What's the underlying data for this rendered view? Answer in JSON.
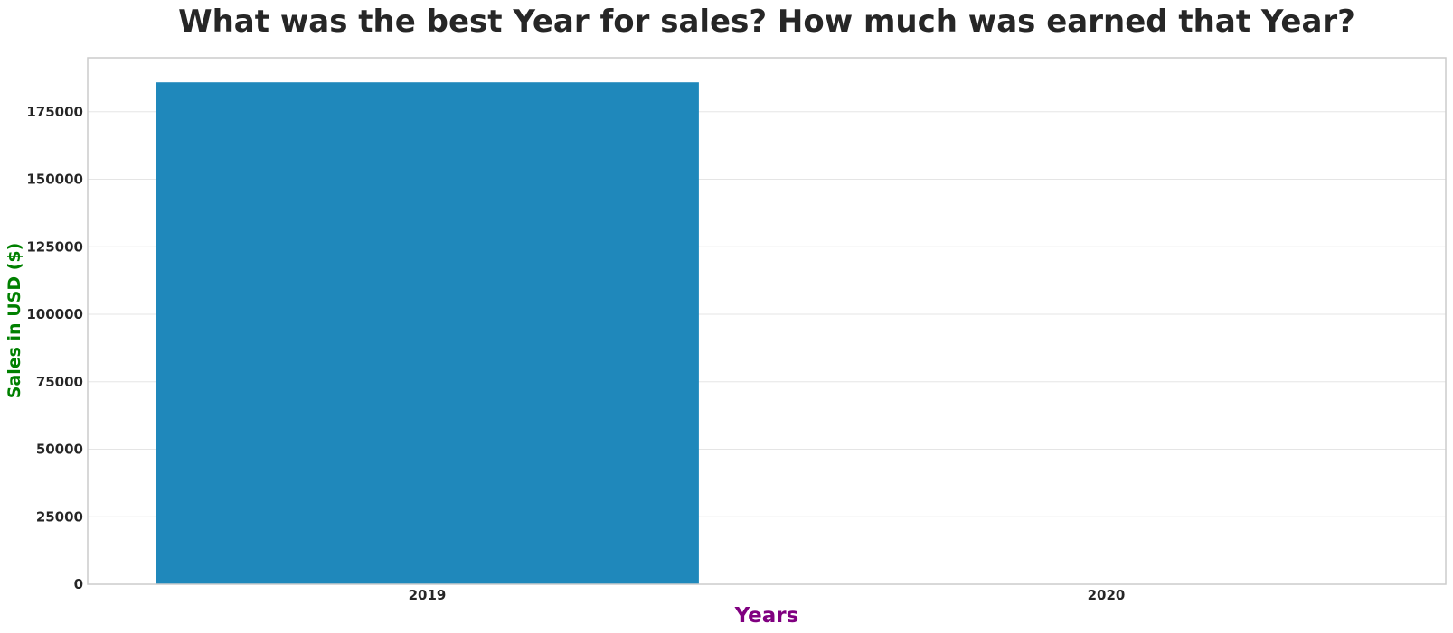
{
  "chart_data": {
    "type": "bar",
    "title": "What was the best Year for sales? How much was earned that Year?",
    "xlabel": "Years",
    "ylabel": "Sales in USD ($)",
    "categories": [
      "2019",
      "2020"
    ],
    "values": [
      185900,
      0
    ],
    "ylim": [
      0,
      195000
    ],
    "yticks": [
      0,
      25000,
      50000,
      75000,
      100000,
      125000,
      150000,
      175000
    ],
    "ytick_labels": [
      "0",
      "25000",
      "50000",
      "75000",
      "100000",
      "125000",
      "150000",
      "175000"
    ],
    "grid": true,
    "bar_color": "#1f88bb",
    "xlabel_color": "#800080",
    "ylabel_color": "#008000"
  }
}
